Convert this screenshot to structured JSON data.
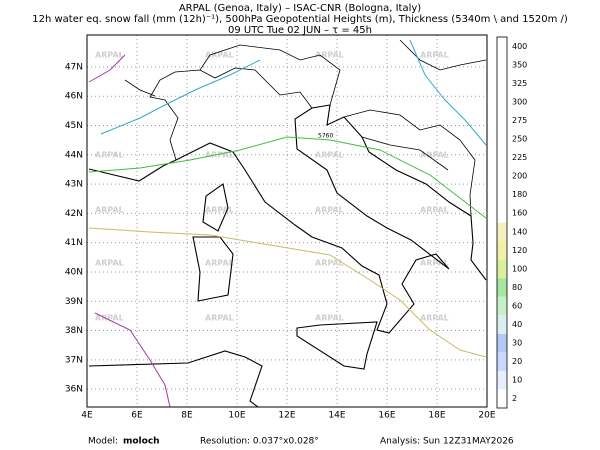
{
  "header": {
    "line1": "ARPAL (Genoa, Italy)  –  ISAC-CNR (Bologna, Italy)",
    "line2": "12h water eq. snow fall (mm (12h)⁻¹), 500hPa Geopotential Heights (m), Thickness (5340m \\ and 1520m /)",
    "line3": "09 UTC Tue 02 JUN  –  τ = 45h"
  },
  "map": {
    "xlim": [
      4,
      20
    ],
    "ylim": [
      35.39,
      48.09
    ],
    "xticks": [
      {
        "value": 4,
        "label": "4E"
      },
      {
        "value": 6,
        "label": "6E"
      },
      {
        "value": 8,
        "label": "8E"
      },
      {
        "value": 10,
        "label": "10E"
      },
      {
        "value": 12,
        "label": "12E"
      },
      {
        "value": 14,
        "label": "14E"
      },
      {
        "value": 16,
        "label": "16E"
      },
      {
        "value": 18,
        "label": "18E"
      },
      {
        "value": 20,
        "label": "20E"
      }
    ],
    "yticks": [
      {
        "value": 36,
        "label": "36N"
      },
      {
        "value": 37,
        "label": "37N"
      },
      {
        "value": 38,
        "label": "38N"
      },
      {
        "value": 39,
        "label": "39N"
      },
      {
        "value": 40,
        "label": "40N"
      },
      {
        "value": 41,
        "label": "41N"
      },
      {
        "value": 42,
        "label": "42N"
      },
      {
        "value": 43,
        "label": "43N"
      },
      {
        "value": 44,
        "label": "44N"
      },
      {
        "value": 45,
        "label": "45N"
      },
      {
        "value": 46,
        "label": "46N"
      },
      {
        "value": 47,
        "label": "47N"
      }
    ],
    "grid": true,
    "watermark": "ARPAL",
    "contours": [
      {
        "label": "5760",
        "color": "#44bb44"
      },
      {
        "color": "#c8bb66"
      },
      {
        "color": "#33aacc"
      },
      {
        "color": "#aa33aa"
      }
    ]
  },
  "colorbar": {
    "ticks": [
      2,
      10,
      20,
      30,
      40,
      60,
      80,
      100,
      120,
      140,
      160,
      180,
      200,
      225,
      250,
      275,
      300,
      325,
      350,
      400
    ],
    "colors": [
      "#ffffff",
      "#e6eeff",
      "#c8d8ff",
      "#b4c8f5",
      "#d8f0f0",
      "#c8f0c8",
      "#a8e6a0",
      "#d8f0a0",
      "#f0f0a8",
      "#f5f0c0",
      "#ffffff",
      "#ffffff",
      "#ffffff",
      "#ffffff",
      "#ffffff",
      "#ffffff",
      "#ffffff",
      "#ffffff",
      "#ffffff",
      "#ffffff"
    ]
  },
  "footer": {
    "model_label": "Model:",
    "model": "moloch",
    "resolution": "Resolution: 0.037°x0.028°",
    "analysis": "Analysis: Sun 12Z31MAY2026"
  }
}
